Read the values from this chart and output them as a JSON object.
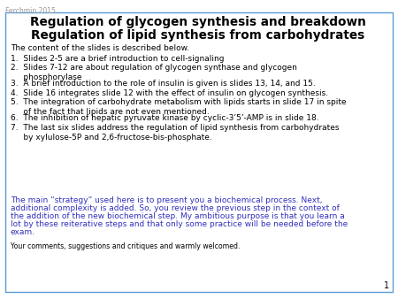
{
  "watermark": "Ferchmin 2015",
  "title_line1": "Regulation of glycogen synthesis and breakdown",
  "title_line2": "Regulation of lipid synthesis from carbohydrates",
  "intro_text": "The content of the slides is described below.",
  "bullet_texts": [
    "1.  Slides 2-5 are a brief introduction to cell-signaling",
    "2.  Slides 7-12 are about regulation of glycogen synthase and glycogen\n     phosphorylase",
    "3.  A brief introduction to the role of insulin is given is slides 13, 14, and 15.",
    "4.  Slide 16 integrates slide 12 with the effect of insulin on glycogen synthesis.",
    "5.  The integration of carbohydrate metabolism with lipids starts in slide 17 in spite\n     of the fact that lipids are not even mentioned.",
    "6.  The inhibition of hepatic pyruvate kinase by cyclic-3’5’-AMP is in slide 18.",
    "7.  The last six slides address the regulation of lipid synthesis from carbohydrates\n     by xylulose-5P and 2,6-fructose-bis-phosphate."
  ],
  "blue_paragraph_lines": [
    "The main “strategy” used here is to present you a biochemical process. Next,",
    "additional complexity is added. So, you review the previous step in the context of",
    "the addition of the new biochemical step. My ambitious purpose is that you learn a",
    "lot by these reiterative steps and that only some practice will be needed before the",
    "exam."
  ],
  "footer_text": "Your comments, suggestions and critiques and warmly welcomed.",
  "page_number": "1",
  "bg_color": "#ffffff",
  "border_color": "#5b9bd5",
  "title_color": "#000000",
  "body_color": "#000000",
  "blue_text_color": "#3030bb",
  "watermark_color": "#999999",
  "footer_color": "#000000",
  "title_fontsize": 9.8,
  "body_fontsize": 6.5,
  "footer_fontsize": 5.6,
  "watermark_fontsize": 5.5,
  "page_num_fontsize": 7.0
}
